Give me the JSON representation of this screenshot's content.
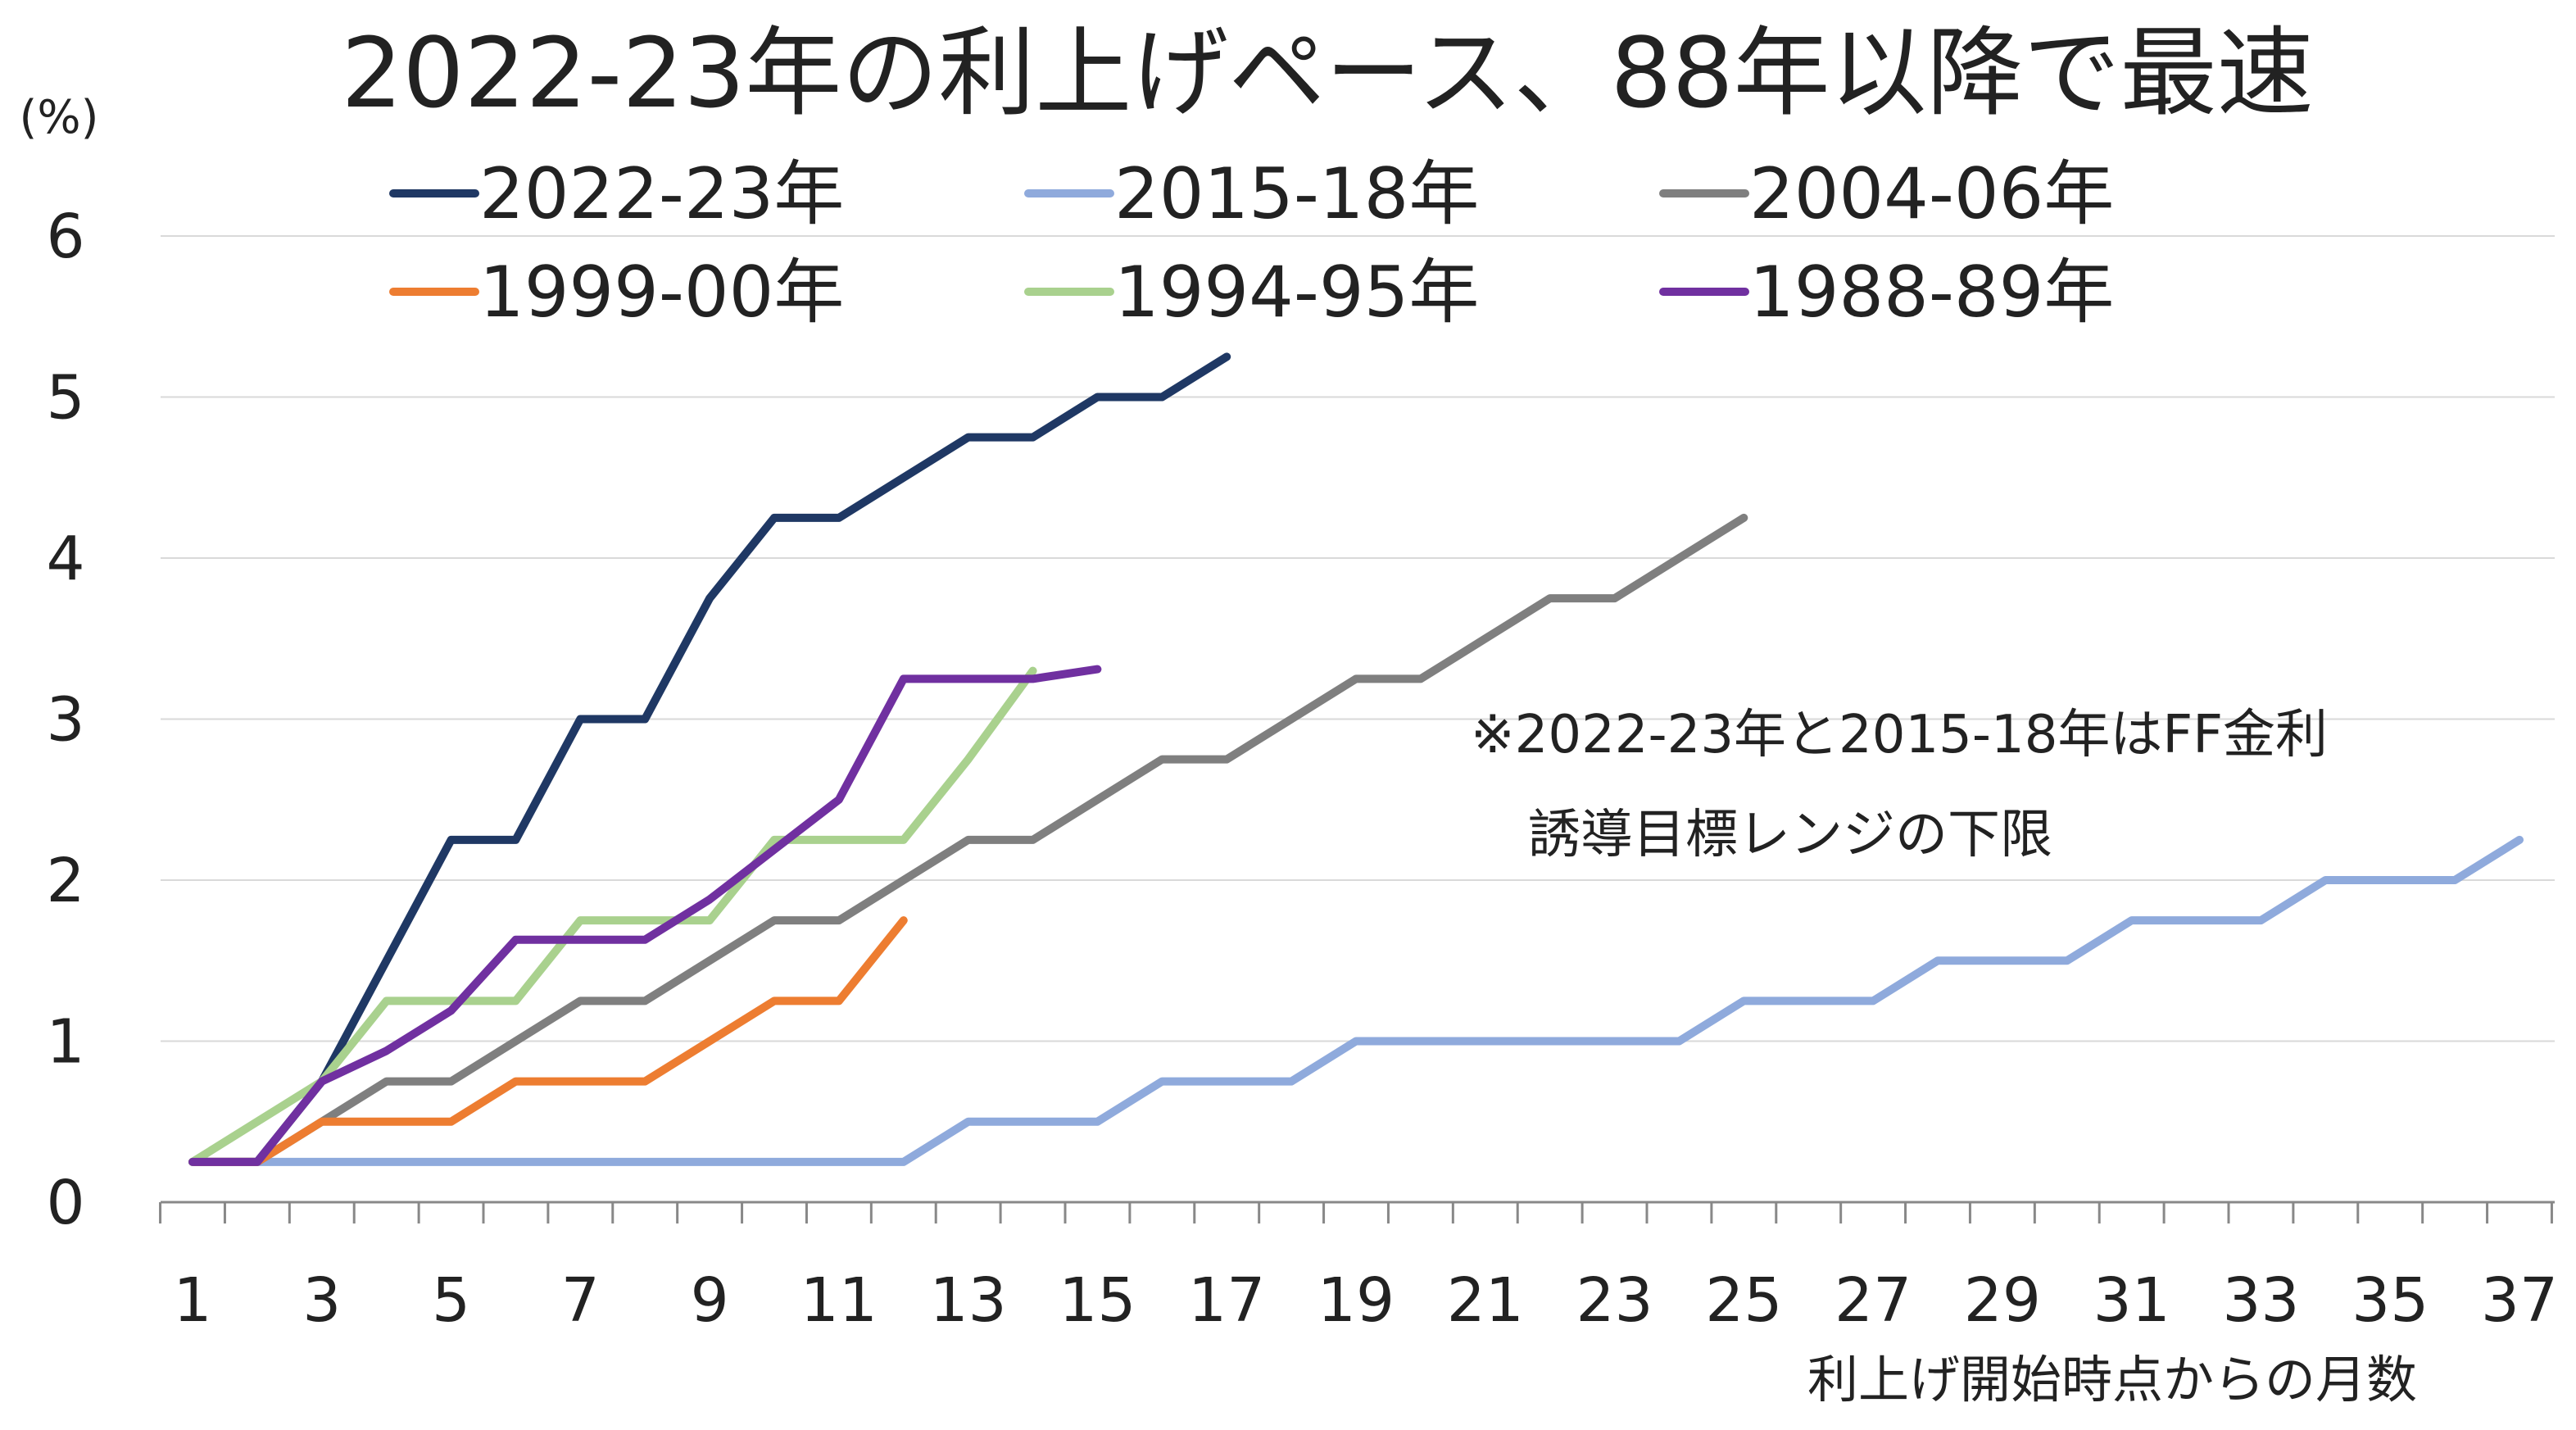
{
  "chart_data": {
    "type": "line",
    "title": "2022-23年の利上げペース、88年以降で最速",
    "ylabel": "(%)",
    "xlabel": "利上げ開始時点からの月数",
    "ylim": [
      0,
      6
    ],
    "yticks": [
      "0",
      "1",
      "2",
      "3",
      "4",
      "5",
      "6"
    ],
    "xlim": [
      1,
      37
    ],
    "xticks": [
      "1",
      "3",
      "5",
      "7",
      "9",
      "11",
      "13",
      "15",
      "17",
      "19",
      "21",
      "23",
      "25",
      "27",
      "29",
      "31",
      "33",
      "35",
      "37"
    ],
    "grid": "horizontal",
    "legend_position": "top",
    "note_lines": [
      "※2022-23年と2015-18年はFF金利",
      "誘導目標レンジの下限"
    ],
    "series": [
      {
        "name": "2022-23年",
        "color": "#1f3864",
        "x": [
          1,
          2,
          3,
          4,
          5,
          6,
          7,
          8,
          9,
          10,
          11,
          12,
          13,
          14,
          15,
          16,
          17
        ],
        "values": [
          0.25,
          0.25,
          0.75,
          1.5,
          2.25,
          2.25,
          3.0,
          3.0,
          3.75,
          4.25,
          4.25,
          4.5,
          4.75,
          4.75,
          5.0,
          5.0,
          5.25
        ]
      },
      {
        "name": "2015-18年",
        "color": "#8faadc",
        "x": [
          1,
          2,
          3,
          4,
          5,
          6,
          7,
          8,
          9,
          10,
          11,
          12,
          13,
          14,
          15,
          16,
          17,
          18,
          19,
          20,
          21,
          22,
          23,
          24,
          25,
          26,
          27,
          28,
          29,
          30,
          31,
          32,
          33,
          34,
          35,
          36,
          37
        ],
        "values": [
          0.25,
          0.25,
          0.25,
          0.25,
          0.25,
          0.25,
          0.25,
          0.25,
          0.25,
          0.25,
          0.25,
          0.25,
          0.5,
          0.5,
          0.5,
          0.75,
          0.75,
          0.75,
          1.0,
          1.0,
          1.0,
          1.0,
          1.0,
          1.0,
          1.25,
          1.25,
          1.25,
          1.5,
          1.5,
          1.5,
          1.75,
          1.75,
          1.75,
          2.0,
          2.0,
          2.0,
          2.25
        ]
      },
      {
        "name": "2004-06年",
        "color": "#7f7f7f",
        "x": [
          1,
          2,
          3,
          4,
          5,
          6,
          7,
          8,
          9,
          10,
          11,
          12,
          13,
          14,
          15,
          16,
          17,
          18,
          19,
          20,
          21,
          22,
          23,
          24,
          25
        ],
        "values": [
          0.25,
          0.25,
          0.5,
          0.75,
          0.75,
          1.0,
          1.25,
          1.25,
          1.5,
          1.75,
          1.75,
          2.0,
          2.25,
          2.25,
          2.5,
          2.75,
          2.75,
          3.0,
          3.25,
          3.25,
          3.5,
          3.75,
          3.75,
          4.0,
          4.25
        ]
      },
      {
        "name": "1999-00年",
        "color": "#ed7d31",
        "x": [
          1,
          2,
          3,
          4,
          5,
          6,
          7,
          8,
          9,
          10,
          11,
          12
        ],
        "values": [
          0.25,
          0.25,
          0.5,
          0.5,
          0.5,
          0.75,
          0.75,
          0.75,
          1.0,
          1.25,
          1.25,
          1.75
        ]
      },
      {
        "name": "1994-95年",
        "color": "#a9d18e",
        "x": [
          1,
          2,
          3,
          4,
          5,
          6,
          7,
          8,
          9,
          10,
          11,
          12,
          13,
          14
        ],
        "values": [
          0.25,
          0.5,
          0.75,
          1.25,
          1.25,
          1.25,
          1.75,
          1.75,
          1.75,
          2.25,
          2.25,
          2.25,
          2.75,
          3.3
        ]
      },
      {
        "name": "1988-89年",
        "color": "#7030a0",
        "x": [
          1,
          2,
          3,
          4,
          5,
          6,
          7,
          8,
          9,
          10,
          11,
          12,
          13,
          14,
          15
        ],
        "values": [
          0.25,
          0.25,
          0.75,
          0.94,
          1.19,
          1.63,
          1.63,
          1.63,
          1.88,
          2.19,
          2.5,
          3.25,
          3.25,
          3.25,
          3.31
        ]
      }
    ]
  }
}
